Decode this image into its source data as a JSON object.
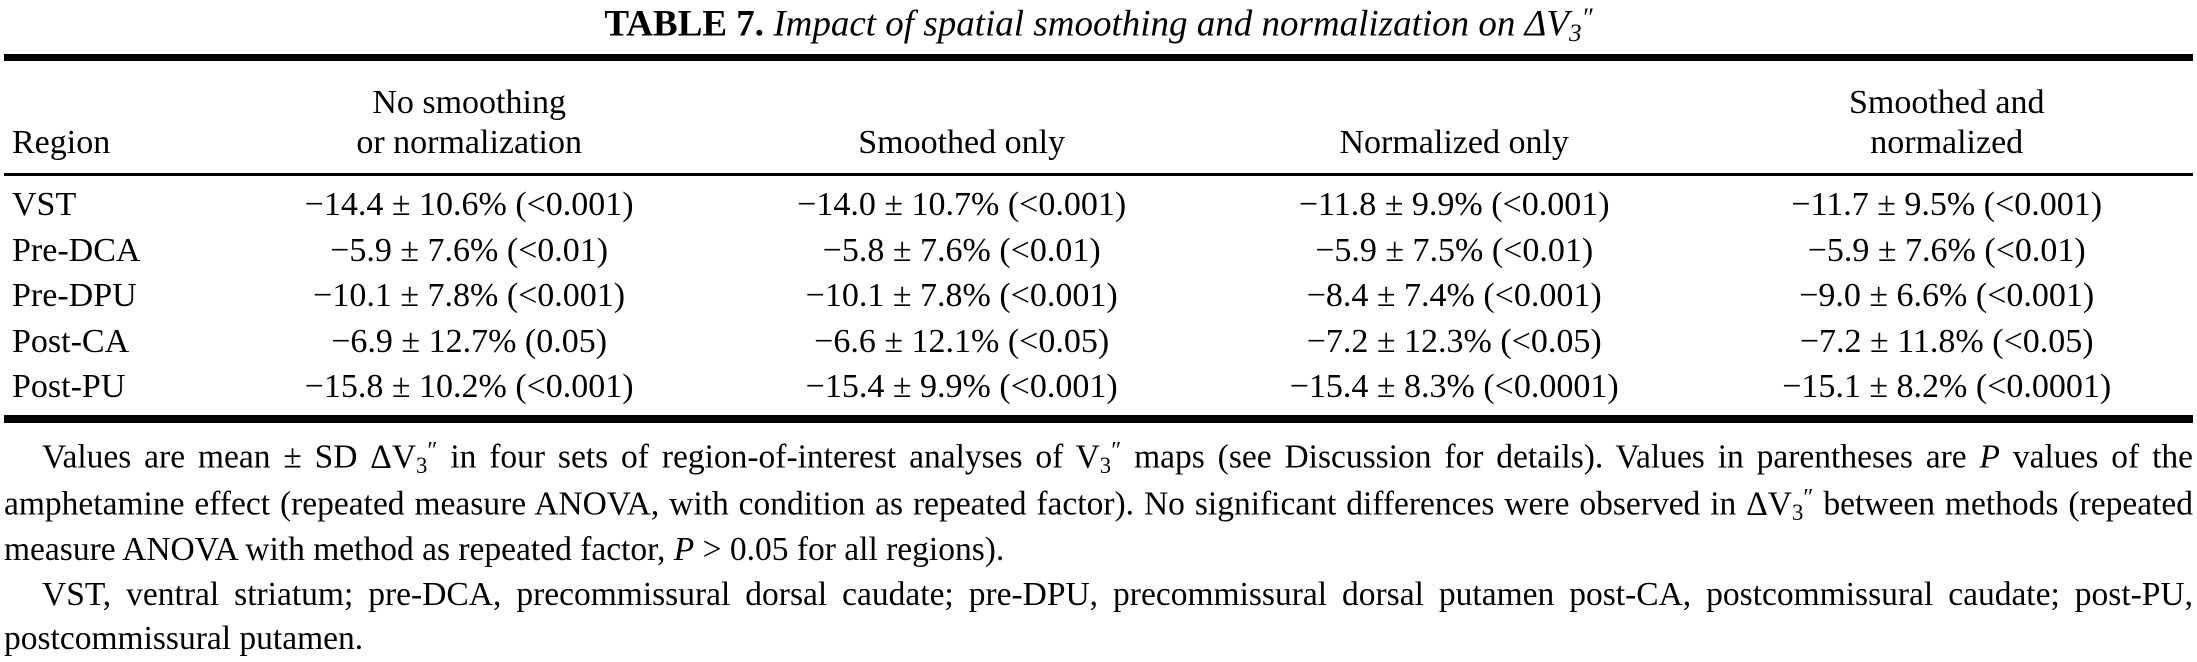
{
  "title": {
    "label": "TABLE 7.",
    "text": "Impact of spatial smoothing and normalization on ",
    "dv": "ΔV",
    "dv_sub": "3",
    "dv_prime": "″"
  },
  "table": {
    "headers": {
      "region": "Region",
      "col1_line1": "No smoothing",
      "col1_line2": "or normalization",
      "col2": "Smoothed only",
      "col3": "Normalized only",
      "col4_line1": "Smoothed and",
      "col4_line2": "normalized"
    },
    "rows": [
      {
        "region": "VST",
        "c1": "−14.4 ± 10.6% (<0.001)",
        "c2": "−14.0 ± 10.7% (<0.001)",
        "c3": "−11.8 ± 9.9% (<0.001)",
        "c4": "−11.7 ± 9.5% (<0.001)"
      },
      {
        "region": "Pre-DCA",
        "c1": "−5.9 ± 7.6% (<0.01)",
        "c2": "−5.8 ± 7.6% (<0.01)",
        "c3": "−5.9 ± 7.5% (<0.01)",
        "c4": "−5.9 ± 7.6% (<0.01)"
      },
      {
        "region": "Pre-DPU",
        "c1": "−10.1 ± 7.8% (<0.001)",
        "c2": "−10.1 ± 7.8% (<0.001)",
        "c3": "−8.4 ± 7.4% (<0.001)",
        "c4": "−9.0 ± 6.6% (<0.001)"
      },
      {
        "region": "Post-CA",
        "c1": "−6.9 ± 12.7% (0.05)",
        "c2": "−6.6 ± 12.1% (<0.05)",
        "c3": "−7.2 ± 12.3% (<0.05)",
        "c4": "−7.2 ± 11.8% (<0.05)"
      },
      {
        "region": "Post-PU",
        "c1": "−15.8 ± 10.2% (<0.001)",
        "c2": "−15.4 ± 9.9% (<0.001)",
        "c3": "−15.4 ± 8.3% (<0.0001)",
        "c4": "−15.1 ± 8.2% (<0.0001)"
      }
    ]
  },
  "footnotes": {
    "p1": {
      "s1": "Values are mean ± SD ΔV",
      "s2": "3",
      "s3": "″",
      "s4": " in four sets of region-of-interest analyses of V",
      "s5": "3",
      "s6": "″",
      "s7": " maps (see Discussion for details). Values in parentheses are ",
      "s8": "P",
      "s9": " values of the amphetamine effect (repeated measure ANOVA, with condition as repeated factor). No significant differences were observed in ΔV",
      "s10": "3",
      "s11": "″",
      "s12": " between methods (repeated measure ANOVA with method as repeated factor, ",
      "s13": "P",
      "s14": " > 0.05 for all regions)."
    },
    "p2": "VST, ventral striatum; pre-DCA, precommissural dorsal caudate; pre-DPU, precommissural dorsal putamen post-CA, postcommissural caudate; post-PU, postcommissural putamen."
  }
}
